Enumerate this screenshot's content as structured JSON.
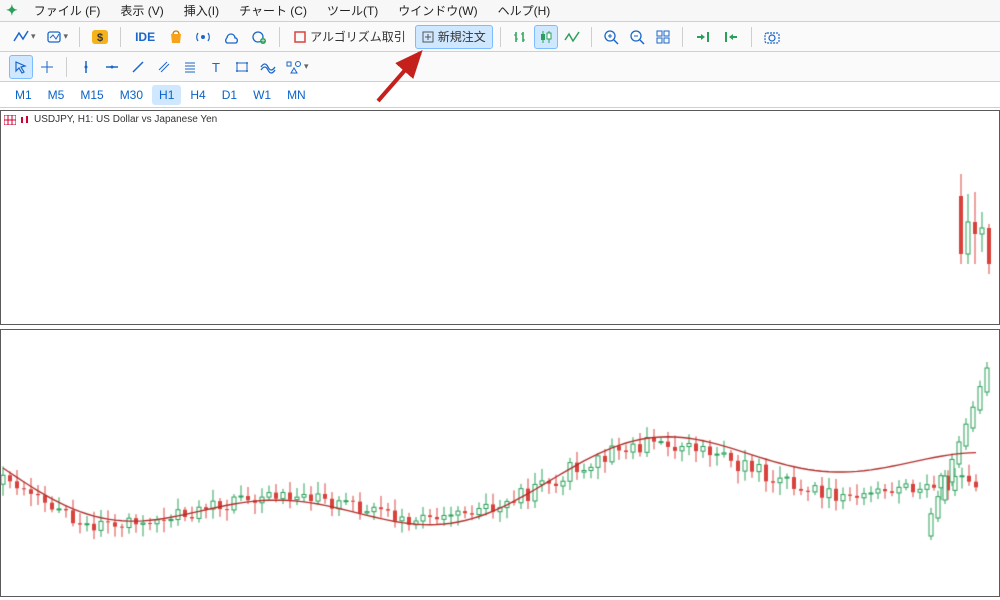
{
  "menu": {
    "items": [
      "ファイル (F)",
      "表示 (V)",
      "挿入(I)",
      "チャート (C)",
      "ツール(T)",
      "ウインドウ(W)",
      "ヘルプ(H)"
    ]
  },
  "toolbar1": {
    "algo_label": "アルゴリズム取引",
    "neworder_label": "新規注文"
  },
  "timeframes": [
    "M1",
    "M5",
    "M15",
    "M30",
    "H1",
    "H4",
    "D1",
    "W1",
    "MN"
  ],
  "active_tf": "H1",
  "chart_title": "USDJPY, H1:  US Dollar vs Japanese Yen",
  "colors": {
    "bull": "#2aa05a",
    "bear": "#d9423c",
    "ma": "#b0302c",
    "border": "#5a5a5a",
    "arrow": "#c4201c"
  },
  "candles_top": {
    "xstart": 960,
    "xstep": 7,
    "count": 5,
    "o": [
      128,
      70,
      102,
      90,
      96
    ],
    "h": [
      150,
      130,
      132,
      112,
      100
    ],
    "l": [
      60,
      60,
      60,
      72,
      50
    ],
    "c": [
      70,
      102,
      90,
      96,
      60
    ]
  },
  "candles_bot": {
    "xstart": 2,
    "xstep": 7,
    "count": 140,
    "base_o": 225,
    "base_h": 240,
    "base_l": 210,
    "base_c": 222,
    "amp": 60,
    "noise": 18,
    "trend": 0.15,
    "ma_start": 230,
    "ma_amp": 20
  }
}
